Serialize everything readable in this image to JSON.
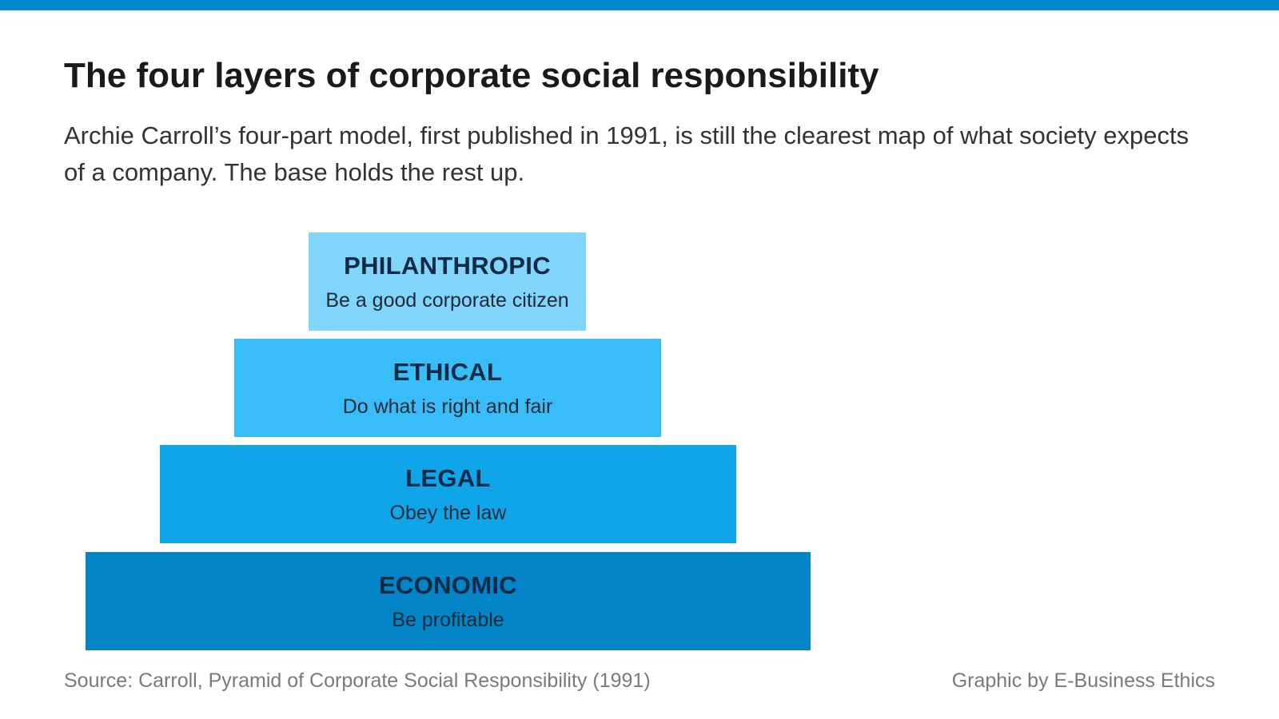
{
  "header": {
    "title": "The four layers of corporate social responsibility",
    "subtitle": "Archie Carroll’s four-part model, first published in 1991, is still the clearest map of what society expects of a company. The base holds the rest up."
  },
  "pyramid": {
    "layers": [
      {
        "name": "PHILANTHROPIC",
        "description": "Be a good corporate citizen",
        "color": "#81d4fa"
      },
      {
        "name": "ETHICAL",
        "description": "Do what is right and fair",
        "color": "#38bdf8"
      },
      {
        "name": "LEGAL",
        "description": "Obey the law",
        "color": "#0ea5e9"
      },
      {
        "name": "ECONOMIC",
        "description": "Be profitable",
        "color": "#0284c7"
      }
    ]
  },
  "footer": {
    "source": "Source: Carroll, Pyramid of Corporate Social Responsibility (1991)",
    "credit": "Graphic by E-Business Ethics"
  },
  "colors": {
    "accent_bar": "#0288cc"
  }
}
